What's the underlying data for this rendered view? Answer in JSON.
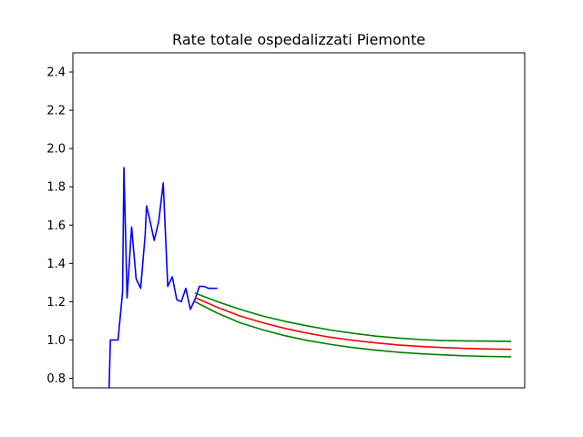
{
  "chart_data": {
    "type": "line",
    "title": "Rate totale ospedalizzati Piemonte",
    "xlabel": "",
    "ylabel": "",
    "x_tick_labels_visible": false,
    "xlim": [
      0,
      100
    ],
    "ylim": [
      0.75,
      2.5
    ],
    "y_ticks": [
      0.8,
      1.0,
      1.2,
      1.4,
      1.6,
      1.8,
      2.0,
      2.2,
      2.4
    ],
    "y_tick_labels": [
      "0.8",
      "1.0",
      "1.2",
      "1.4",
      "1.6",
      "1.8",
      "2.0",
      "2.2",
      "2.4"
    ],
    "grid": false,
    "legend": "none",
    "series": [
      {
        "color": "#0000ff",
        "x": [
          8.0,
          8.3,
          9.0,
          10.0,
          11.0,
          11.3,
          12.0,
          13.0,
          14.0,
          15.0,
          16.0,
          16.3,
          17.0,
          18.0,
          19.0,
          20.0,
          21.0,
          22.0,
          23.0,
          24.0,
          25.0,
          26.0,
          27.0,
          28.0,
          29.0,
          30.0,
          31.0,
          32.0
        ],
        "y": [
          0.73,
          1.0,
          1.0,
          1.0,
          1.25,
          1.9,
          1.22,
          1.59,
          1.32,
          1.27,
          1.55,
          1.7,
          1.63,
          1.52,
          1.62,
          1.82,
          1.28,
          1.33,
          1.21,
          1.2,
          1.27,
          1.16,
          1.21,
          1.28,
          1.28,
          1.27,
          1.27,
          1.27
        ]
      },
      {
        "color": "#008000",
        "x": [
          27,
          32,
          37,
          42,
          47,
          52,
          57,
          62,
          67,
          72,
          77,
          82,
          87,
          92,
          97
        ],
        "y": [
          1.245,
          1.2,
          1.16,
          1.125,
          1.097,
          1.073,
          1.052,
          1.035,
          1.02,
          1.01,
          1.002,
          0.997,
          0.995,
          0.994,
          0.993
        ]
      },
      {
        "color": "#ff0000",
        "x": [
          27,
          32,
          37,
          42,
          47,
          52,
          57,
          62,
          67,
          72,
          77,
          82,
          87,
          92,
          97
        ],
        "y": [
          1.222,
          1.17,
          1.125,
          1.09,
          1.06,
          1.035,
          1.014,
          0.998,
          0.985,
          0.974,
          0.966,
          0.96,
          0.956,
          0.953,
          0.951
        ]
      },
      {
        "color": "#008000",
        "x": [
          27,
          32,
          37,
          42,
          47,
          52,
          57,
          62,
          67,
          72,
          77,
          82,
          87,
          92,
          97
        ],
        "y": [
          1.2,
          1.14,
          1.09,
          1.053,
          1.022,
          0.997,
          0.977,
          0.96,
          0.947,
          0.936,
          0.928,
          0.922,
          0.917,
          0.914,
          0.912
        ]
      }
    ]
  }
}
